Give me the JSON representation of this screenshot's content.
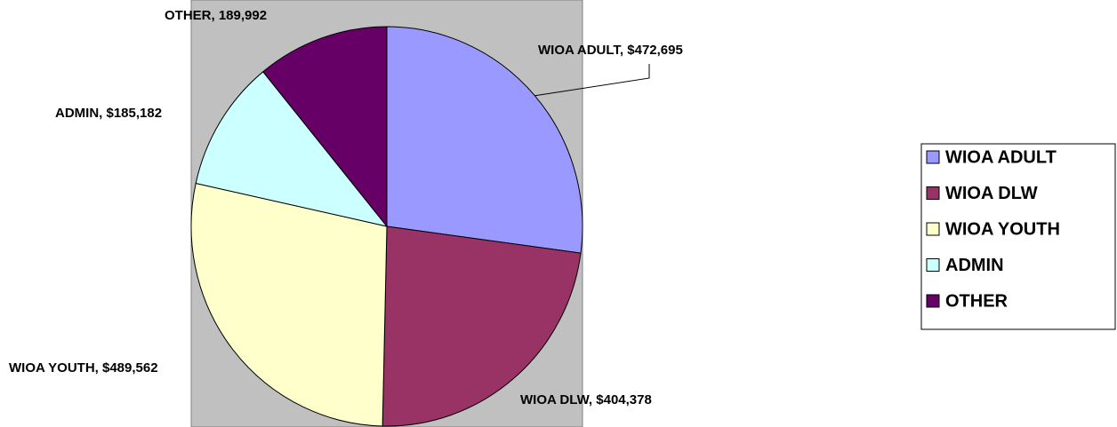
{
  "chart_data": {
    "type": "pie",
    "categories": [
      "WIOA ADULT",
      "WIOA DLW",
      "WIOA YOUTH",
      "ADMIN",
      "OTHER"
    ],
    "values": [
      472695,
      404378,
      489562,
      185182,
      189992
    ],
    "value_labels": [
      "WIOA ADULT, $472,695",
      "WIOA DLW, $404,378",
      "WIOA YOUTH, $489,562",
      "ADMIN, $185,182",
      "OTHER, 189,992"
    ],
    "colors": [
      "#9999ff",
      "#993366",
      "#ffffcc",
      "#ccffff",
      "#660066"
    ],
    "legend": "right"
  }
}
